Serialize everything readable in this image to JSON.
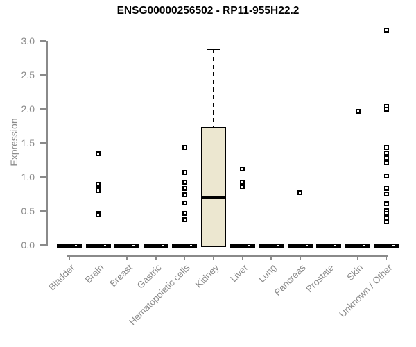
{
  "chart_data": {
    "type": "box",
    "title": "ENSG00000256502 - RP11-955H22.2",
    "ylabel": "Expression",
    "xlabel": "",
    "ylim": [
      0,
      3.2
    ],
    "yticks": [
      "0.0",
      "0.5",
      "1.0",
      "1.5",
      "2.0",
      "2.5",
      "3.0"
    ],
    "grid": false,
    "legend": "none",
    "colors": {
      "box_fill": "#ece7d0",
      "axis": "#8a8a8a",
      "data": "#000000"
    },
    "categories": [
      "Bladder",
      "Brain",
      "Breast",
      "Gastric",
      "Hematopoietic cells",
      "Kidney",
      "Liver",
      "Lung",
      "Pancreas",
      "Prostate",
      "Skin",
      "Unknown / Other"
    ],
    "boxes": [
      {
        "category": "Bladder",
        "q1": 0,
        "median": 0,
        "q3": 0,
        "whisker_low": 0,
        "whisker_high": 0,
        "outliers": []
      },
      {
        "category": "Brain",
        "q1": 0,
        "median": 0,
        "q3": 0,
        "whisker_low": 0,
        "whisker_high": 0,
        "outliers": [
          1.34,
          0.89,
          0.82,
          0.8,
          0.46,
          0.44
        ]
      },
      {
        "category": "Breast",
        "q1": 0,
        "median": 0,
        "q3": 0,
        "whisker_low": 0,
        "whisker_high": 0,
        "outliers": []
      },
      {
        "category": "Gastric",
        "q1": 0,
        "median": 0,
        "q3": 0,
        "whisker_low": 0,
        "whisker_high": 0,
        "outliers": []
      },
      {
        "category": "Hematopoietic cells",
        "q1": 0,
        "median": 0,
        "q3": 0,
        "whisker_low": 0,
        "whisker_high": 0,
        "outliers": [
          1.43,
          1.07,
          0.92,
          0.83,
          0.74,
          0.62,
          0.46,
          0.37
        ]
      },
      {
        "category": "Kidney",
        "q1": 0,
        "median": 0.7,
        "q3": 1.73,
        "whisker_low": 0,
        "whisker_high": 2.88,
        "outliers": []
      },
      {
        "category": "Liver",
        "q1": 0,
        "median": 0,
        "q3": 0,
        "whisker_low": 0,
        "whisker_high": 0,
        "outliers": [
          1.12,
          0.92,
          0.85
        ]
      },
      {
        "category": "Lung",
        "q1": 0,
        "median": 0,
        "q3": 0,
        "whisker_low": 0,
        "whisker_high": 0,
        "outliers": []
      },
      {
        "category": "Pancreas",
        "q1": 0,
        "median": 0,
        "q3": 0,
        "whisker_low": 0,
        "whisker_high": 0,
        "outliers": [
          0.77
        ]
      },
      {
        "category": "Prostate",
        "q1": 0,
        "median": 0,
        "q3": 0,
        "whisker_low": 0,
        "whisker_high": 0,
        "outliers": []
      },
      {
        "category": "Skin",
        "q1": 0,
        "median": 0,
        "q3": 0,
        "whisker_low": 0,
        "whisker_high": 0,
        "outliers": [
          1.96
        ]
      },
      {
        "category": "Unknown / Other",
        "q1": 0,
        "median": 0,
        "q3": 0,
        "whisker_low": 0,
        "whisker_high": 0,
        "outliers": [
          3.16,
          2.04,
          2.0,
          1.43,
          1.35,
          1.28,
          1.21,
          1.02,
          0.83,
          0.75,
          0.61,
          0.51,
          0.46,
          0.4,
          0.34
        ]
      }
    ]
  }
}
